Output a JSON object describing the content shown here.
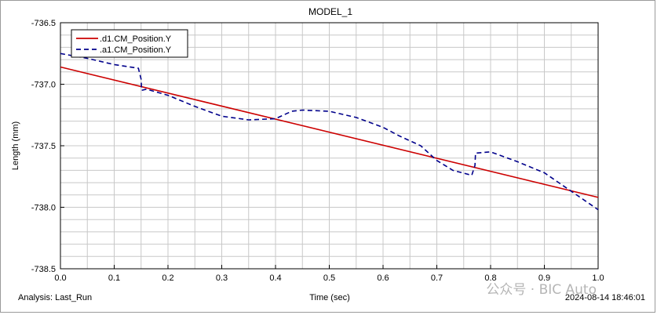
{
  "chart_data": {
    "type": "line",
    "title": "MODEL_1",
    "xlabel": "Time (sec)",
    "ylabel": "Length (mm)",
    "xlim": [
      0.0,
      1.0
    ],
    "ylim": [
      -738.5,
      -736.5
    ],
    "x_ticks": [
      "0.0",
      "0.1",
      "0.2",
      "0.3",
      "0.4",
      "0.5",
      "0.6",
      "0.7",
      "0.8",
      "0.9",
      "1.0"
    ],
    "y_ticks": [
      "-736.5",
      "-737.0",
      "-737.5",
      "-738.0",
      "-738.5"
    ],
    "grid": true,
    "legend_position": "top-left",
    "series": [
      {
        "name": ".d1.CM_Position.Y",
        "color": "#cc0000",
        "style": "solid",
        "points": [
          [
            0.0,
            -736.86
          ],
          [
            1.0,
            -737.92
          ]
        ]
      },
      {
        "name": ".a1.CM_Position.Y",
        "color": "#00008b",
        "style": "dashed",
        "points": [
          [
            0.0,
            -736.75
          ],
          [
            0.05,
            -736.79
          ],
          [
            0.1,
            -736.84
          ],
          [
            0.145,
            -736.87
          ],
          [
            0.15,
            -736.96
          ],
          [
            0.151,
            -737.05
          ],
          [
            0.16,
            -737.04
          ],
          [
            0.2,
            -737.09
          ],
          [
            0.25,
            -737.18
          ],
          [
            0.3,
            -737.26
          ],
          [
            0.35,
            -737.29
          ],
          [
            0.4,
            -737.28
          ],
          [
            0.43,
            -737.22
          ],
          [
            0.45,
            -737.21
          ],
          [
            0.5,
            -737.22
          ],
          [
            0.55,
            -737.27
          ],
          [
            0.6,
            -737.35
          ],
          [
            0.63,
            -737.42
          ],
          [
            0.67,
            -737.5
          ],
          [
            0.7,
            -737.62
          ],
          [
            0.73,
            -737.7
          ],
          [
            0.765,
            -737.74
          ],
          [
            0.771,
            -737.66
          ],
          [
            0.772,
            -737.56
          ],
          [
            0.8,
            -737.55
          ],
          [
            0.85,
            -737.63
          ],
          [
            0.9,
            -737.72
          ],
          [
            0.95,
            -737.87
          ],
          [
            1.0,
            -738.02
          ]
        ]
      }
    ]
  },
  "footer": {
    "analysis": "Analysis:  Last_Run",
    "timestamp": "2024-08-14 18:46:01"
  },
  "watermark": "公众号 · BIC Auto"
}
